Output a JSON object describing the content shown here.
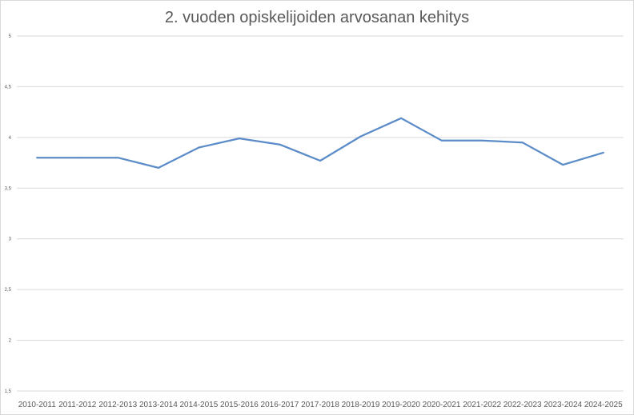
{
  "chart_data": {
    "type": "line",
    "title": "2. vuoden opiskelijoiden arvosanan kehitys",
    "xlabel": "",
    "ylabel": "",
    "categories": [
      "2010-2011",
      "2011-2012",
      "2012-2013",
      "2013-2014",
      "2014-2015",
      "2015-2016",
      "2016-2017",
      "2017-2018",
      "2018-2019",
      "2019-2020",
      "2020-2021",
      "2021-2022",
      "2022-2023",
      "2023-2024",
      "2024-2025"
    ],
    "series": [
      {
        "values": [
          3.8,
          3.8,
          3.8,
          3.7,
          3.9,
          3.99,
          3.93,
          3.77,
          4.01,
          4.19,
          3.97,
          3.97,
          3.95,
          3.73,
          3.85
        ],
        "color": "#5b8cc8"
      }
    ],
    "ylim": [
      1.5,
      5
    ],
    "yticks": [
      "1,5",
      "2",
      "2,5",
      "3",
      "3,5",
      "4",
      "4,5",
      "5"
    ],
    "ytick_values": [
      1.5,
      2,
      2.5,
      3,
      3.5,
      4,
      4.5,
      5
    ],
    "grid": true,
    "gridline_color": "#d9d9d9",
    "axis_text_color": "#595959",
    "legend": "none"
  }
}
